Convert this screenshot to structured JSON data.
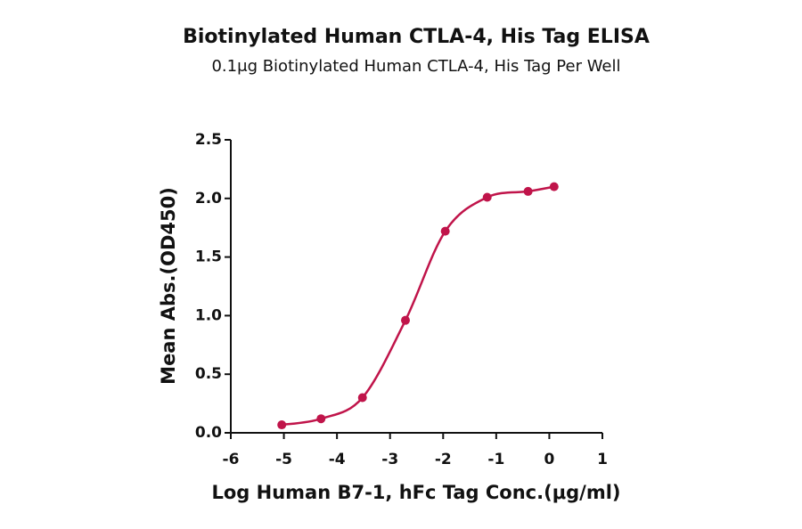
{
  "chart_data": {
    "type": "scatter",
    "title": "Biotinylated Human CTLA-4, His Tag ELISA",
    "subtitle": "0.1μg Biotinylated Human CTLA-4, His Tag Per Well",
    "x_label": "Log Human B7-1, hFc Tag Conc.(μg/ml)",
    "y_label": "Mean Abs.(OD450)",
    "series": [
      {
        "name": "Biotinylated Human CTLA-4, His Tag",
        "color": "#c0144a",
        "x": [
          -5.04,
          -4.3,
          -3.52,
          -2.71,
          -1.96,
          -1.17,
          -0.4,
          0.09
        ],
        "values": [
          0.068,
          0.12,
          0.3,
          0.96,
          1.72,
          2.01,
          2.06,
          2.1
        ]
      }
    ],
    "xlim": [
      -6,
      1
    ],
    "xticks": [
      -6,
      -5,
      -4,
      -3,
      -2,
      -1,
      0,
      1
    ],
    "ylim": [
      0,
      2.5
    ],
    "yticks": [
      {
        "value": 0,
        "label": "0.0"
      },
      0.5,
      {
        "value": 1,
        "label": "1.0"
      },
      1.5,
      {
        "value": 2,
        "label": "2.0"
      },
      2.5
    ]
  }
}
